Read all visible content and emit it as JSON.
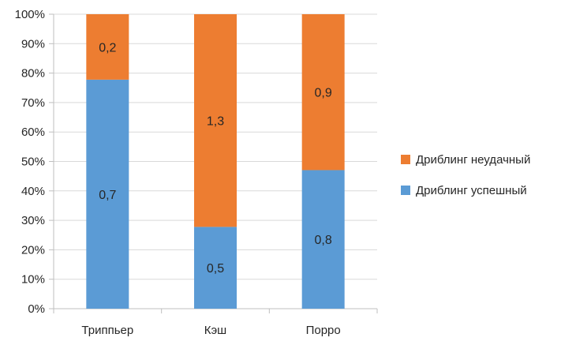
{
  "chart_data": {
    "type": "bar",
    "stacked": true,
    "percent": true,
    "categories": [
      "Триппьер",
      "Кэш",
      "Порро"
    ],
    "series": [
      {
        "name": "Дриблинг успешный",
        "values": [
          0.7,
          0.5,
          0.8
        ],
        "labels": [
          "0,7",
          "0,5",
          "0,8"
        ],
        "color": "#5b9bd5"
      },
      {
        "name": "Дриблинг неудачный",
        "values": [
          0.2,
          1.3,
          0.9
        ],
        "labels": [
          "0,2",
          "1,3",
          "0,9"
        ],
        "color": "#ed7d31"
      }
    ],
    "y_ticks": [
      "0%",
      "10%",
      "20%",
      "30%",
      "40%",
      "50%",
      "60%",
      "70%",
      "80%",
      "90%",
      "100%"
    ],
    "ylim": [
      0,
      100
    ],
    "grid": true,
    "legend_position": "right",
    "legend_order": [
      1,
      0
    ]
  },
  "colors": {
    "gridline": "#d9d9d9",
    "axis": "#bfbfbf",
    "text": "#262626"
  }
}
